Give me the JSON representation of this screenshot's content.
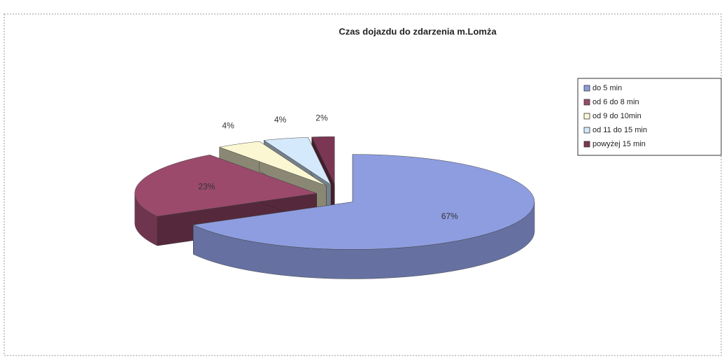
{
  "chart_data": {
    "type": "pie3d",
    "title": "Czas dojazdu do zdarzenia  m.Lomża",
    "categories": [
      "do 5 min",
      "od 6 do 8 min",
      "od 9 do 10min",
      "od 11 do 15 min",
      "powyżej 15 min"
    ],
    "values": [
      67,
      23,
      4,
      4,
      2
    ],
    "value_labels": [
      "67%",
      "23%",
      "4%",
      "4%",
      "2%"
    ],
    "colors": [
      "#8e9de0",
      "#9b4a6c",
      "#fbf7d2",
      "#d4e9fb",
      "#7b3653"
    ],
    "legend": "right"
  }
}
